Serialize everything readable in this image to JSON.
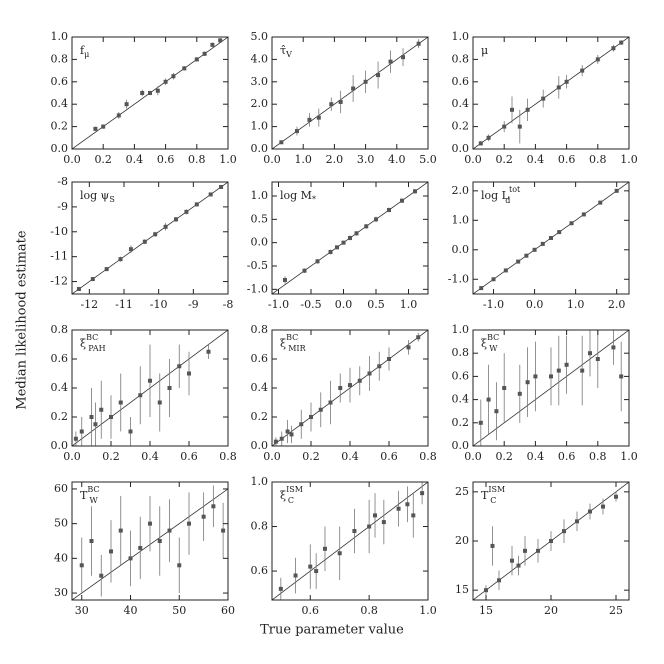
{
  "axis_labels": {
    "y": "Median likelihood estimate",
    "x": "True parameter value"
  },
  "chart_data": [
    {
      "type": "scatter",
      "label": {
        "text": "f",
        "sub": "μ"
      },
      "color": "#555",
      "xlim": [
        0,
        1
      ],
      "ylim": [
        0,
        1
      ],
      "xticks": [
        {
          "value": 0,
          "label": "0.0"
        },
        0.2,
        0.4,
        0.6,
        0.8,
        {
          "value": 1,
          "label": "1.0"
        }
      ],
      "yticks": [
        {
          "value": 0,
          "label": "0.0"
        },
        0.2,
        0.4,
        0.6,
        0.8,
        {
          "value": 1,
          "label": "1.0"
        }
      ],
      "x": [
        0.15,
        0.2,
        0.3,
        0.35,
        0.45,
        0.5,
        0.55,
        0.6,
        0.65,
        0.72,
        0.8,
        0.85,
        0.9,
        0.95
      ],
      "y": [
        0.18,
        0.2,
        0.3,
        0.4,
        0.5,
        0.5,
        0.52,
        0.6,
        0.65,
        0.72,
        0.8,
        0.85,
        0.93,
        0.97
      ],
      "yerr": [
        0.02,
        0.02,
        0.03,
        0.04,
        0.03,
        0.02,
        0.04,
        0.03,
        0.03,
        0.02,
        0.02,
        0.02,
        0.02,
        0.02
      ]
    },
    {
      "type": "scatter",
      "label": {
        "text": "τ̂",
        "sub": "V"
      },
      "color": "#555",
      "xlim": [
        0,
        5
      ],
      "ylim": [
        0,
        5
      ],
      "xticks": [
        {
          "value": 0,
          "label": "0.0"
        },
        {
          "value": 1,
          "label": "1.0"
        },
        {
          "value": 2,
          "label": "2.0"
        },
        {
          "value": 3,
          "label": "3.0"
        },
        {
          "value": 4,
          "label": "4.0"
        },
        {
          "value": 5,
          "label": "5.0"
        }
      ],
      "yticks": [
        {
          "value": 0,
          "label": "0.0"
        },
        {
          "value": 1,
          "label": "1.0"
        },
        {
          "value": 2,
          "label": "2.0"
        },
        {
          "value": 3,
          "label": "3.0"
        },
        {
          "value": 4,
          "label": "4.0"
        },
        {
          "value": 5,
          "label": "5.0"
        }
      ],
      "x": [
        0.3,
        0.8,
        1.2,
        1.5,
        1.9,
        2.2,
        2.6,
        3.0,
        3.4,
        3.8,
        4.2,
        4.7
      ],
      "y": [
        0.3,
        0.8,
        1.3,
        1.4,
        2.0,
        2.1,
        2.7,
        3.0,
        3.3,
        3.9,
        4.1,
        4.7
      ],
      "yerr": [
        0.05,
        0.2,
        0.3,
        0.4,
        0.3,
        0.5,
        0.6,
        0.5,
        0.6,
        0.5,
        0.4,
        0.2
      ]
    },
    {
      "type": "scatter",
      "label": {
        "text": "μ"
      },
      "color": "#555",
      "xlim": [
        0,
        1
      ],
      "ylim": [
        0,
        1
      ],
      "xticks": [
        {
          "value": 0,
          "label": "0.0"
        },
        0.2,
        0.4,
        0.6,
        0.8,
        {
          "value": 1,
          "label": "1.0"
        }
      ],
      "yticks": [
        {
          "value": 0,
          "label": "0.0"
        },
        0.2,
        0.4,
        0.6,
        0.8,
        {
          "value": 1,
          "label": "1.0"
        }
      ],
      "x": [
        0.05,
        0.1,
        0.2,
        0.25,
        0.3,
        0.35,
        0.45,
        0.55,
        0.6,
        0.7,
        0.8,
        0.9,
        0.95
      ],
      "y": [
        0.05,
        0.1,
        0.2,
        0.35,
        0.2,
        0.35,
        0.45,
        0.55,
        0.6,
        0.7,
        0.8,
        0.9,
        0.95
      ],
      "yerr": [
        0.02,
        0.03,
        0.05,
        0.12,
        0.15,
        0.1,
        0.08,
        0.1,
        0.06,
        0.05,
        0.04,
        0.03,
        0.02
      ]
    },
    {
      "type": "scatter",
      "label": {
        "text": "log ψ",
        "sub": "S"
      },
      "color": "#555",
      "xlim": [
        -12.5,
        -8
      ],
      "ylim": [
        -12.5,
        -8
      ],
      "xticks": [
        -12,
        -11,
        -10,
        -9,
        -8
      ],
      "yticks": [
        -12,
        -11,
        -10,
        -9,
        -8
      ],
      "x": [
        -12.3,
        -11.9,
        -11.5,
        -11.1,
        -10.8,
        -10.4,
        -10.1,
        -9.8,
        -9.5,
        -9.2,
        -8.9,
        -8.5,
        -8.2
      ],
      "y": [
        -12.3,
        -11.9,
        -11.5,
        -11.1,
        -10.7,
        -10.4,
        -10.1,
        -9.8,
        -9.5,
        -9.2,
        -8.9,
        -8.5,
        -8.2
      ],
      "yerr": [
        0.05,
        0.05,
        0.08,
        0.1,
        0.15,
        0.1,
        0.1,
        0.15,
        0.1,
        0.1,
        0.08,
        0.05,
        0.05
      ]
    },
    {
      "type": "scatter",
      "label": {
        "text": "log M",
        "sub": "*"
      },
      "color": "#555",
      "xlim": [
        -1.1,
        1.3
      ],
      "ylim": [
        -1.1,
        1.3
      ],
      "xticks": [
        {
          "value": -1,
          "label": "-1.0"
        },
        -0.5,
        {
          "value": 0,
          "label": "0.0"
        },
        0.5,
        {
          "value": 1,
          "label": "1.0"
        }
      ],
      "yticks": [
        {
          "value": -1,
          "label": "-1.0"
        },
        -0.5,
        {
          "value": 0,
          "label": "0.0"
        },
        0.5,
        {
          "value": 1,
          "label": "1.0"
        }
      ],
      "x": [
        -0.9,
        -0.6,
        -0.4,
        -0.2,
        -0.1,
        0.0,
        0.1,
        0.2,
        0.35,
        0.5,
        0.7,
        0.9,
        1.1
      ],
      "y": [
        -0.8,
        -0.6,
        -0.4,
        -0.2,
        -0.1,
        0.0,
        0.1,
        0.2,
        0.35,
        0.5,
        0.7,
        0.9,
        1.1
      ],
      "yerr": [
        0.08,
        0.05,
        0.05,
        0.05,
        0.04,
        0.04,
        0.05,
        0.05,
        0.05,
        0.06,
        0.05,
        0.05,
        0.05
      ]
    },
    {
      "type": "scatter",
      "label": {
        "text": "log L",
        "sub": "d",
        "sup": "tot"
      },
      "color": "#555",
      "xlim": [
        -1.5,
        2.3
      ],
      "ylim": [
        -1.5,
        2.3
      ],
      "xticks": [
        {
          "value": -1,
          "label": "-1.0"
        },
        {
          "value": 0,
          "label": "0.0"
        },
        {
          "value": 1,
          "label": "1.0"
        },
        {
          "value": 2,
          "label": "2.0"
        }
      ],
      "yticks": [
        {
          "value": -1,
          "label": "-1.0"
        },
        {
          "value": 0,
          "label": "0.0"
        },
        {
          "value": 1,
          "label": "1.0"
        },
        {
          "value": 2,
          "label": "2.0"
        }
      ],
      "x": [
        -1.3,
        -1.0,
        -0.7,
        -0.4,
        -0.2,
        0.0,
        0.2,
        0.4,
        0.6,
        0.9,
        1.2,
        1.6,
        2.0
      ],
      "y": [
        -1.3,
        -1.0,
        -0.7,
        -0.4,
        -0.2,
        0.0,
        0.2,
        0.4,
        0.6,
        0.9,
        1.2,
        1.6,
        2.0
      ],
      "yerr": [
        0.04,
        0.04,
        0.04,
        0.04,
        0.04,
        0.04,
        0.04,
        0.04,
        0.04,
        0.04,
        0.04,
        0.04,
        0.04
      ]
    },
    {
      "type": "scatter",
      "label": {
        "text": "ξ",
        "sub": "PAH",
        "sup": "BC"
      },
      "color": "#555",
      "xlim": [
        0,
        0.8
      ],
      "ylim": [
        0,
        0.8
      ],
      "xticks": [
        {
          "value": 0,
          "label": "0.0"
        },
        0.2,
        0.4,
        0.6,
        0.8
      ],
      "yticks": [
        {
          "value": 0,
          "label": "0.0"
        },
        0.2,
        0.4,
        0.6,
        0.8
      ],
      "x": [
        0.02,
        0.05,
        0.1,
        0.12,
        0.15,
        0.2,
        0.25,
        0.3,
        0.35,
        0.4,
        0.45,
        0.5,
        0.55,
        0.6,
        0.7
      ],
      "y": [
        0.05,
        0.1,
        0.2,
        0.15,
        0.25,
        0.2,
        0.3,
        0.1,
        0.35,
        0.45,
        0.3,
        0.4,
        0.55,
        0.5,
        0.65
      ],
      "yerr": [
        0.05,
        0.1,
        0.2,
        0.15,
        0.2,
        0.15,
        0.2,
        0.1,
        0.2,
        0.25,
        0.2,
        0.2,
        0.15,
        0.15,
        0.05
      ]
    },
    {
      "type": "scatter",
      "label": {
        "text": "ξ",
        "sub": "MIR",
        "sup": "BC"
      },
      "color": "#555",
      "xlim": [
        0,
        0.8
      ],
      "ylim": [
        0,
        0.8
      ],
      "xticks": [
        {
          "value": 0,
          "label": "0.0"
        },
        0.2,
        0.4,
        0.6,
        0.8
      ],
      "yticks": [
        {
          "value": 0,
          "label": "0.0"
        },
        0.2,
        0.4,
        0.6,
        0.8
      ],
      "x": [
        0.02,
        0.05,
        0.08,
        0.1,
        0.15,
        0.2,
        0.25,
        0.3,
        0.35,
        0.4,
        0.45,
        0.5,
        0.55,
        0.6,
        0.7,
        0.75
      ],
      "y": [
        0.03,
        0.05,
        0.1,
        0.08,
        0.15,
        0.2,
        0.25,
        0.3,
        0.4,
        0.42,
        0.45,
        0.5,
        0.55,
        0.6,
        0.68,
        0.75
      ],
      "yerr": [
        0.03,
        0.05,
        0.08,
        0.06,
        0.1,
        0.1,
        0.12,
        0.15,
        0.1,
        0.12,
        0.1,
        0.12,
        0.1,
        0.08,
        0.05,
        0.03
      ]
    },
    {
      "type": "scatter",
      "label": {
        "text": "ξ",
        "sub": "W",
        "sup": "BC"
      },
      "color": "#555",
      "xlim": [
        0,
        1
      ],
      "ylim": [
        0,
        1
      ],
      "xticks": [
        {
          "value": 0,
          "label": "0.0"
        },
        0.2,
        0.4,
        0.6,
        0.8,
        {
          "value": 1,
          "label": "1.0"
        }
      ],
      "yticks": [
        {
          "value": 0,
          "label": "0.0"
        },
        0.2,
        0.4,
        0.6,
        0.8,
        {
          "value": 1,
          "label": "1.0"
        }
      ],
      "x": [
        0.05,
        0.1,
        0.15,
        0.2,
        0.3,
        0.35,
        0.4,
        0.5,
        0.55,
        0.6,
        0.7,
        0.75,
        0.8,
        0.9,
        0.95
      ],
      "y": [
        0.2,
        0.4,
        0.3,
        0.5,
        0.45,
        0.55,
        0.6,
        0.6,
        0.65,
        0.7,
        0.65,
        0.8,
        0.75,
        0.85,
        0.6
      ],
      "yerr": [
        0.2,
        0.3,
        0.25,
        0.3,
        0.25,
        0.3,
        0.3,
        0.25,
        0.3,
        0.25,
        0.3,
        0.2,
        0.25,
        0.15,
        0.3
      ]
    },
    {
      "type": "scatter",
      "label": {
        "text": "T",
        "sub": "W",
        "sup": "BC"
      },
      "color": "#555",
      "xlim": [
        28,
        60
      ],
      "ylim": [
        28,
        62
      ],
      "xticks": [
        30,
        40,
        50,
        60
      ],
      "yticks": [
        30,
        40,
        50,
        60
      ],
      "x": [
        30,
        32,
        34,
        36,
        38,
        40,
        42,
        44,
        46,
        48,
        50,
        52,
        55,
        57,
        59
      ],
      "y": [
        38,
        45,
        35,
        42,
        48,
        40,
        43,
        50,
        45,
        48,
        38,
        50,
        52,
        55,
        48
      ],
      "yerr": [
        8,
        10,
        6,
        9,
        10,
        8,
        9,
        8,
        10,
        9,
        8,
        9,
        7,
        6,
        8
      ]
    },
    {
      "type": "scatter",
      "label": {
        "text": "ξ",
        "sub": "C",
        "sup": "ISM"
      },
      "color": "#555",
      "xlim": [
        0.47,
        1
      ],
      "ylim": [
        0.47,
        1
      ],
      "xticks": [
        0.6,
        0.8,
        {
          "value": 1,
          "label": "1.0"
        }
      ],
      "yticks": [
        0.6,
        0.8,
        {
          "value": 1,
          "label": "1.0"
        }
      ],
      "x": [
        0.5,
        0.55,
        0.6,
        0.62,
        0.65,
        0.7,
        0.75,
        0.8,
        0.82,
        0.85,
        0.9,
        0.93,
        0.95,
        0.98
      ],
      "y": [
        0.52,
        0.58,
        0.62,
        0.6,
        0.7,
        0.68,
        0.78,
        0.8,
        0.85,
        0.82,
        0.88,
        0.9,
        0.85,
        0.95
      ],
      "yerr": [
        0.05,
        0.08,
        0.1,
        0.08,
        0.1,
        0.12,
        0.1,
        0.12,
        0.1,
        0.1,
        0.08,
        0.08,
        0.1,
        0.05
      ]
    },
    {
      "type": "scatter",
      "label": {
        "text": "T",
        "sub": "C",
        "sup": "ISM"
      },
      "color": "#555",
      "xlim": [
        14,
        26
      ],
      "ylim": [
        14,
        26
      ],
      "xticks": [
        15,
        20,
        25
      ],
      "yticks": [
        15,
        20,
        25
      ],
      "x": [
        15,
        15.5,
        16,
        17,
        17.5,
        18,
        19,
        20,
        21,
        22,
        23,
        24,
        25
      ],
      "y": [
        15,
        19.5,
        16,
        18,
        17.5,
        19,
        19,
        20,
        21,
        22,
        23,
        23.5,
        24.5
      ],
      "yerr": [
        0.5,
        2,
        1,
        1.5,
        1,
        1.5,
        1.2,
        1,
        1.2,
        1,
        0.8,
        0.8,
        0.5
      ]
    }
  ]
}
